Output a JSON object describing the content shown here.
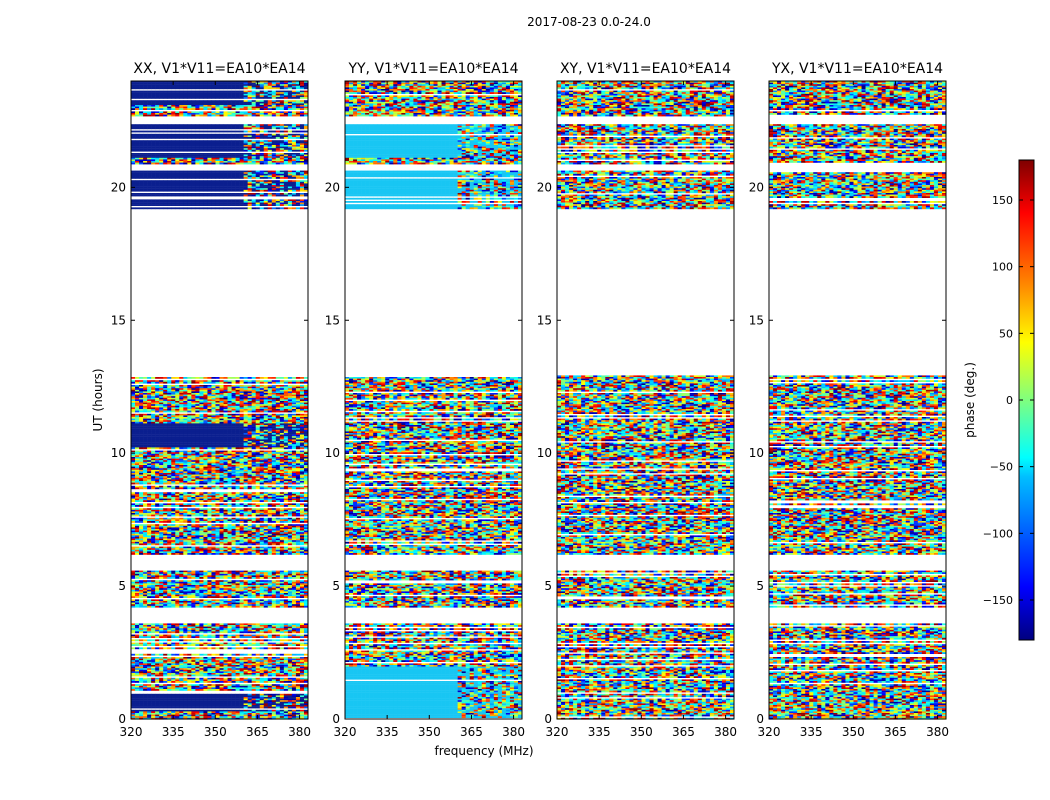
{
  "figure": {
    "suptitle": "2017-08-23 0.0-24.0"
  },
  "chart_data": [
    {
      "type": "heatmap",
      "title": "XX, V1*V11=EA10*EA14",
      "xlabel": "",
      "ylabel": "UT (hours)",
      "xlim": [
        320,
        383
      ],
      "ylim": [
        0,
        24
      ],
      "xticks": [
        320,
        335,
        350,
        365,
        380
      ],
      "yticks": [
        0,
        5,
        10,
        15,
        20
      ],
      "flagged_gaps_hours": [
        [
          3.6,
          4.2
        ],
        [
          5.6,
          6.2
        ],
        [
          12.9,
          19.2
        ],
        [
          20.6,
          20.9
        ],
        [
          22.4,
          22.7
        ]
      ],
      "dominant_color": "#0b1f8f",
      "dominant_bands": [
        [
          0.3,
          1.0
        ],
        [
          10.2,
          11.1
        ],
        [
          19.2,
          20.6
        ],
        [
          21.1,
          22.4
        ],
        [
          23.1,
          24.0
        ]
      ],
      "phase_note": "Phase (deg.) from −180 to 180, noisy per channel"
    },
    {
      "type": "heatmap",
      "title": "YY, V1*V11=EA10*EA14",
      "xlabel": "frequency (MHz)",
      "ylabel": "",
      "xlim": [
        320,
        383
      ],
      "ylim": [
        0,
        24
      ],
      "xticks": [
        320,
        335,
        350,
        365,
        380
      ],
      "yticks": [
        0,
        5,
        10,
        15,
        20
      ],
      "flagged_gaps_hours": [
        [
          3.6,
          4.2
        ],
        [
          5.6,
          6.2
        ],
        [
          12.9,
          19.2
        ],
        [
          20.6,
          20.9
        ],
        [
          22.4,
          22.7
        ]
      ],
      "dominant_color": "#18c6f3",
      "dominant_bands": [
        [
          0.0,
          2.0
        ],
        [
          19.2,
          20.6
        ],
        [
          21.1,
          22.4
        ]
      ],
      "phase_note": "Phase (deg.) from −180 to 180, noisy per channel"
    },
    {
      "type": "heatmap",
      "title": "XY, V1*V11=EA10*EA14",
      "xlabel": "",
      "ylabel": "",
      "xlim": [
        320,
        383
      ],
      "ylim": [
        0,
        24
      ],
      "xticks": [
        320,
        335,
        350,
        365,
        380
      ],
      "yticks": [
        0,
        5,
        10,
        15,
        20
      ],
      "flagged_gaps_hours": [
        [
          3.6,
          4.2
        ],
        [
          5.6,
          6.2
        ],
        [
          12.9,
          19.2
        ],
        [
          20.6,
          20.9
        ],
        [
          22.4,
          22.7
        ]
      ],
      "dominant_color": "",
      "dominant_bands": [],
      "phase_note": "Phase (deg.) from −180 to 180, noisy per channel"
    },
    {
      "type": "heatmap",
      "title": "YX, V1*V11=EA10*EA14",
      "xlabel": "",
      "ylabel": "",
      "xlim": [
        320,
        383
      ],
      "ylim": [
        0,
        24
      ],
      "xticks": [
        320,
        335,
        350,
        365,
        380
      ],
      "yticks": [
        0,
        5,
        10,
        15,
        20
      ],
      "flagged_gaps_hours": [
        [
          3.6,
          4.2
        ],
        [
          5.6,
          6.2
        ],
        [
          12.9,
          19.2
        ],
        [
          20.6,
          20.9
        ],
        [
          22.4,
          22.7
        ]
      ],
      "dominant_color": "",
      "dominant_bands": [],
      "phase_note": "Phase (deg.) from −180 to 180, noisy per channel"
    }
  ],
  "colorbar": {
    "label": "phase (deg.)",
    "vmin": -180,
    "vmax": 180,
    "ticks": [
      150,
      100,
      50,
      0,
      -50,
      -100,
      -150
    ],
    "colormap": [
      "#00007f",
      "#0000ff",
      "#00bfff",
      "#00ffff",
      "#7fff7f",
      "#ffff00",
      "#ff7f00",
      "#ff0000",
      "#7f0000"
    ]
  }
}
